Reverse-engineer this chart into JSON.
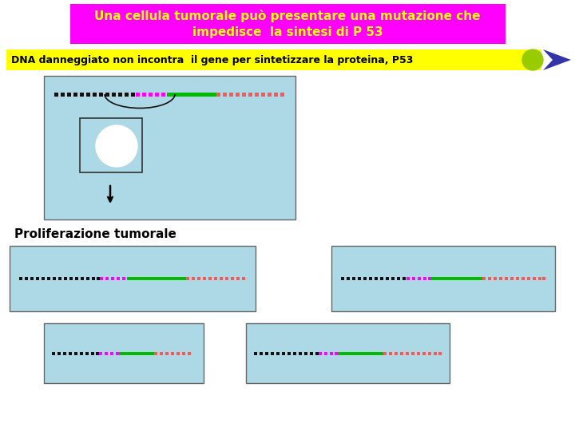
{
  "title_text": "Una cellula tumorale può presentare una mutazione che\nimpedisce  la sintesi di P 53",
  "title_bg": "#FF00FF",
  "title_color": "#FFFF00",
  "banner_text": "DNA danneggiato non incontra  il gene per sintetizzare la proteina, P53",
  "banner_bg": "#FFFF00",
  "banner_color": "#000000",
  "cell_bg": "#ADD8E6",
  "proliferation_label": "Proliferazione tumorale",
  "bg_color": "#FFFFFF",
  "arrow_blue": "#3333AA",
  "circle_green": "#99CC00"
}
